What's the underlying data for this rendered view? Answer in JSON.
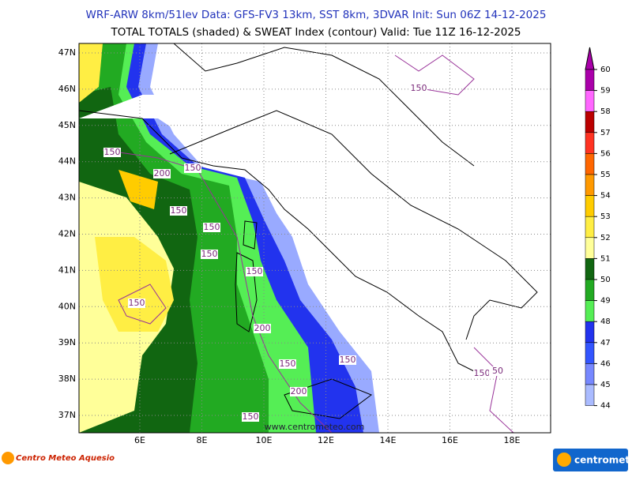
{
  "header": {
    "line1": "WRF-ARW 8km/51lev  Data: GFS-FV3 13km, SST 8km, 3DVAR  Init: Sun 06Z 14-12-2025",
    "line2": "TOTAL TOTALS (shaded) & SWEAT Index (contour)  Valid: Tue 11Z 16-12-2025"
  },
  "map": {
    "lat_labels": [
      "47N",
      "46N",
      "45N",
      "44N",
      "43N",
      "42N",
      "41N",
      "40N",
      "39N",
      "38N",
      "37N"
    ],
    "lon_labels": [
      "6E",
      "8E",
      "10E",
      "12E",
      "14E",
      "16E",
      "18E"
    ],
    "contour_labels": [
      "150",
      "200",
      "150",
      "150",
      "150",
      "150",
      "150",
      "150",
      "200",
      "150",
      "150",
      "200",
      "150",
      "150",
      "150",
      "50"
    ],
    "watermark": "www.centrometeo.com"
  },
  "colorbar": {
    "levels": [
      {
        "label": "60",
        "color": "#aa00aa"
      },
      {
        "label": "59",
        "color": "#ff66ff"
      },
      {
        "label": "58",
        "color": "#bb0000"
      },
      {
        "label": "57",
        "color": "#ff3322"
      },
      {
        "label": "56",
        "color": "#ff6600"
      },
      {
        "label": "55",
        "color": "#ff9900"
      },
      {
        "label": "54",
        "color": "#ffcc00"
      },
      {
        "label": "53",
        "color": "#ffee44"
      },
      {
        "label": "52",
        "color": "#ffff99"
      },
      {
        "label": "51",
        "color": "#116611"
      },
      {
        "label": "50",
        "color": "#22aa22"
      },
      {
        "label": "49",
        "color": "#55ee55"
      },
      {
        "label": "48",
        "color": "#2233ee"
      },
      {
        "label": "47",
        "color": "#3355ff"
      },
      {
        "label": "46",
        "color": "#7788ff"
      },
      {
        "label": "45",
        "color": "#aabbff"
      },
      {
        "label": "44",
        "color": "#ddddff"
      }
    ]
  },
  "footer": {
    "left_logo": "Centro Meteo Aquesio",
    "right_logo": "centrometeo"
  }
}
